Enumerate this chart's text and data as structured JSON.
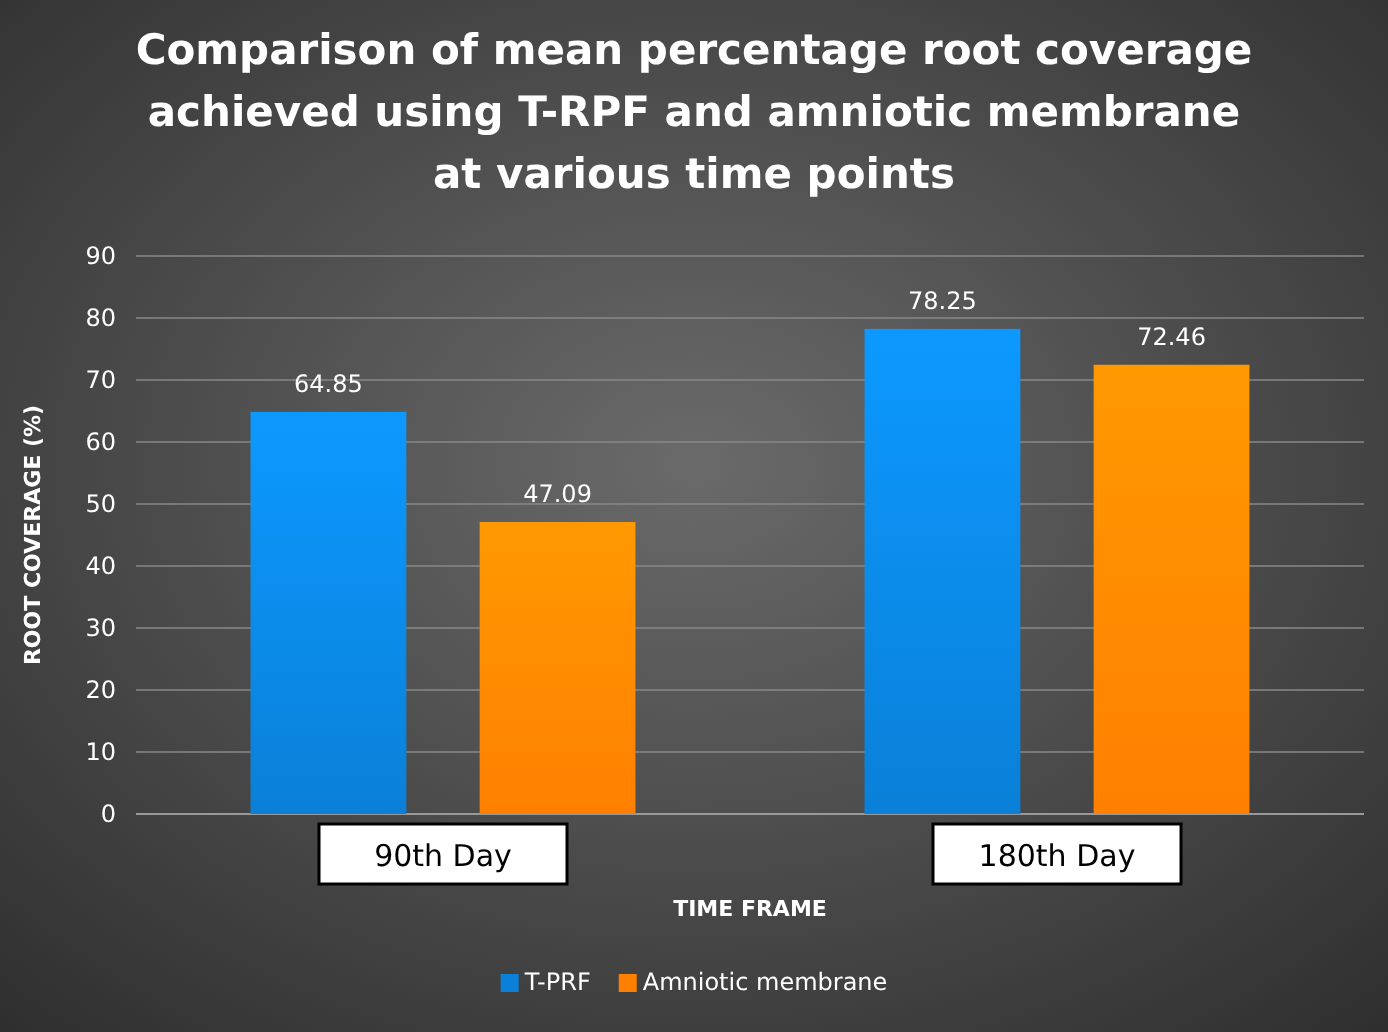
{
  "chart_data": {
    "type": "bar",
    "title": "Comparison of mean percentage root coverage achieved using T-RPF and amniotic membrane at various time points",
    "xlabel": "TIME FRAME",
    "ylabel": "ROOT COVERAGE (%)",
    "categories": [
      "90th Day",
      "180th Day"
    ],
    "series": [
      {
        "name": "T-PRF",
        "color": "#0a80d8",
        "values": [
          64.85,
          78.25
        ]
      },
      {
        "name": "Amniotic membrane",
        "color": "#ff8000",
        "values": [
          47.09,
          72.46
        ]
      }
    ],
    "ylim": [
      0,
      90
    ],
    "yticks": [
      0,
      10,
      20,
      30,
      40,
      50,
      60,
      70,
      80,
      90
    ],
    "grid": "y",
    "legend": "bottom",
    "data_labels": true
  }
}
